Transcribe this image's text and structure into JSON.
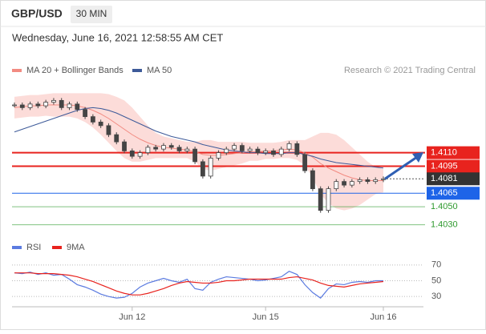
{
  "header": {
    "symbol": "GBP/USD",
    "interval": "30 MIN",
    "date": "Wednesday, June 16, 2021 12:58:55 AM CET",
    "credit": "Research © 2021 Trading Central"
  },
  "chart_data": [
    {
      "type": "candlestick",
      "categories": [
        null,
        null,
        null,
        null,
        null,
        null,
        null,
        null,
        null,
        null,
        null,
        null,
        null,
        null,
        null,
        "Jun 12",
        null,
        null,
        null,
        null,
        null,
        null,
        null,
        null,
        null,
        null,
        null,
        null,
        null,
        null,
        null,
        null,
        "Jun 15",
        null,
        null,
        null,
        null,
        null,
        null,
        null,
        null,
        null,
        null,
        null,
        null,
        null,
        null,
        "Jun 16"
      ],
      "values": [
        1.4163,
        1.416,
        1.4164,
        1.4162,
        1.4166,
        1.4168,
        1.416,
        1.4164,
        1.4158,
        1.415,
        1.4144,
        1.414,
        1.413,
        1.4122,
        1.4112,
        1.4106,
        1.411,
        1.4116,
        1.4114,
        1.4118,
        1.4116,
        1.4112,
        1.4114,
        1.41,
        1.4084,
        1.4104,
        1.411,
        1.4114,
        1.4118,
        1.4112,
        1.4114,
        1.411,
        1.4112,
        1.4108,
        1.4114,
        1.412,
        1.4108,
        1.409,
        1.407,
        1.4046,
        1.407,
        1.4078,
        1.4074,
        1.4078,
        1.408,
        1.4078,
        1.408,
        1.4081
      ],
      "color": "#444444",
      "ylim": [
        1.4027,
        1.4187
      ],
      "series": [
        {
          "name": "MA 20 + Bollinger Bands",
          "color": "#f28b82",
          "values": [
            1.416,
            1.4161,
            1.4162,
            1.4162,
            1.4163,
            1.4163,
            1.4163,
            1.4163,
            1.4162,
            1.416,
            1.4157,
            1.4153,
            1.4148,
            1.4142,
            1.4136,
            1.413,
            1.4125,
            1.4121,
            1.4118,
            1.4116,
            1.4115,
            1.4114,
            1.4113,
            1.4111,
            1.4108,
            1.4107,
            1.4107,
            1.4108,
            1.4109,
            1.411,
            1.4111,
            1.4111,
            1.4112,
            1.4112,
            1.4113,
            1.4114,
            1.4113,
            1.411,
            1.4105,
            1.4098,
            1.4093,
            1.4089,
            1.4085,
            1.4082,
            1.408,
            1.4079,
            1.4079,
            1.4079
          ],
          "upper": [
            1.4172,
            1.4173,
            1.4174,
            1.4174,
            1.4175,
            1.4176,
            1.4176,
            1.4176,
            1.4176,
            1.4176,
            1.4176,
            1.4176,
            1.4175,
            1.4172,
            1.4168,
            1.416,
            1.415,
            1.414,
            1.4132,
            1.4128,
            1.4126,
            1.4124,
            1.4122,
            1.4122,
            1.4124,
            1.4124,
            1.4122,
            1.4122,
            1.4122,
            1.4122,
            1.4121,
            1.4121,
            1.4121,
            1.4121,
            1.4122,
            1.4124,
            1.4124,
            1.4124,
            1.4128,
            1.4132,
            1.4132,
            1.413,
            1.4124,
            1.4116,
            1.4108,
            1.41,
            1.4094,
            1.4092
          ],
          "lower": [
            1.4148,
            1.4149,
            1.415,
            1.415,
            1.4151,
            1.415,
            1.415,
            1.415,
            1.4148,
            1.4144,
            1.4138,
            1.413,
            1.4121,
            1.4112,
            1.4104,
            1.41,
            1.41,
            1.4102,
            1.4104,
            1.4104,
            1.4104,
            1.4104,
            1.4104,
            1.41,
            1.4092,
            1.409,
            1.4092,
            1.4094,
            1.4096,
            1.4098,
            1.4101,
            1.4101,
            1.4103,
            1.4103,
            1.4104,
            1.4104,
            1.4102,
            1.4096,
            1.4082,
            1.4064,
            1.4054,
            1.4048,
            1.4046,
            1.4048,
            1.4052,
            1.4058,
            1.4064,
            1.4066
          ]
        },
        {
          "name": "MA 50",
          "color": "#3d5a99",
          "values": [
            1.4133,
            1.4136,
            1.4139,
            1.4142,
            1.4145,
            1.4148,
            1.4151,
            1.4154,
            1.4157,
            1.4159,
            1.416,
            1.4159,
            1.4157,
            1.4154,
            1.415,
            1.4146,
            1.4142,
            1.4138,
            1.4134,
            1.4131,
            1.4128,
            1.4126,
            1.4124,
            1.4122,
            1.4119,
            1.4117,
            1.4115,
            1.4113,
            1.4112,
            1.4111,
            1.411,
            1.411,
            1.4109,
            1.4109,
            1.4109,
            1.411,
            1.411,
            1.4108,
            1.4106,
            1.4103,
            1.4101,
            1.4099,
            1.4098,
            1.4097,
            1.4096,
            1.4095,
            1.4094,
            1.4093
          ]
        }
      ],
      "levels": [
        {
          "value": 1.411,
          "label": "1.4110",
          "color": "#e8231e",
          "style": "box"
        },
        {
          "value": 1.4095,
          "label": "1.4095",
          "color": "#e8231e",
          "style": "box"
        },
        {
          "value": 1.4081,
          "label": "1.4081",
          "color": "#333333",
          "style": "current"
        },
        {
          "value": 1.4065,
          "label": "1.4065",
          "color": "#1e64e8",
          "style": "box"
        },
        {
          "value": 1.405,
          "label": "1.4050",
          "color": "#2e9a2e",
          "style": "text"
        },
        {
          "value": 1.403,
          "label": "1.4030",
          "color": "#2e9a2e",
          "style": "text"
        }
      ]
    },
    {
      "type": "line",
      "ylim": [
        20,
        80
      ],
      "yticks": [
        30,
        50,
        70
      ],
      "series": [
        {
          "name": "RSI",
          "color": "#5b7be0",
          "values": [
            60,
            59,
            61,
            58,
            60,
            57,
            58,
            52,
            45,
            42,
            38,
            33,
            30,
            28,
            29,
            34,
            42,
            47,
            50,
            53,
            50,
            48,
            52,
            40,
            38,
            48,
            52,
            55,
            54,
            53,
            52,
            50,
            51,
            53,
            55,
            62,
            58,
            45,
            35,
            28,
            40,
            46,
            45,
            48,
            49,
            48,
            50,
            50
          ]
        },
        {
          "name": "9MA",
          "color": "#e8231e",
          "values": [
            60,
            60,
            60,
            59,
            59,
            59,
            58,
            57,
            55,
            52,
            49,
            45,
            41,
            37,
            34,
            32,
            32,
            34,
            37,
            40,
            44,
            47,
            49,
            48,
            47,
            47,
            48,
            50,
            50,
            51,
            52,
            52,
            52,
            52,
            52,
            54,
            55,
            53,
            51,
            47,
            44,
            43,
            42,
            44,
            46,
            47,
            48,
            49
          ]
        }
      ]
    }
  ]
}
